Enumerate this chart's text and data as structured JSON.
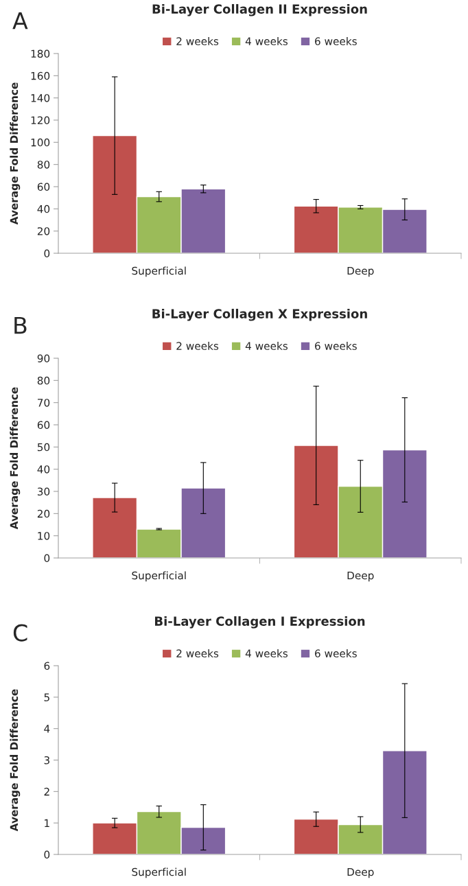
{
  "chart_data": [
    {
      "type": "bar",
      "title": "Bi-Layer Collagen II Expression",
      "ylabel": "Average Fold Difference",
      "categories": [
        "Superficial",
        "Deep"
      ],
      "annotations": [
        "A"
      ],
      "legend": "top",
      "ylim": [
        0,
        180
      ],
      "yticks": [
        0,
        20,
        40,
        60,
        80,
        100,
        120,
        140,
        160,
        180
      ],
      "series": [
        {
          "name": "2 weeks",
          "color": "#c0504d",
          "values": [
            106,
            42.5
          ],
          "errors": [
            53,
            6
          ]
        },
        {
          "name": "4 weeks",
          "color": "#9bbb59",
          "values": [
            51,
            41.5
          ],
          "errors": [
            4.5,
            1.5
          ]
        },
        {
          "name": "6 weeks",
          "color": "#8064a2",
          "values": [
            58,
            39.5
          ],
          "errors": [
            3.5,
            9.5
          ]
        }
      ]
    },
    {
      "type": "bar",
      "title": "Bi-Layer Collagen X Expression",
      "ylabel": "Average Fold Difference",
      "categories": [
        "Superficial",
        "Deep"
      ],
      "annotations": [
        "B"
      ],
      "legend": "top",
      "ylim": [
        0,
        90
      ],
      "yticks": [
        0,
        10,
        20,
        30,
        40,
        50,
        60,
        70,
        80,
        90
      ],
      "series": [
        {
          "name": "2 weeks",
          "color": "#c0504d",
          "values": [
            27.2,
            50.7
          ],
          "errors": [
            6.5,
            26.7
          ]
        },
        {
          "name": "4 weeks",
          "color": "#9bbb59",
          "values": [
            13,
            32.3
          ],
          "errors": [
            0.3,
            11.7
          ]
        },
        {
          "name": "6 weeks",
          "color": "#8064a2",
          "values": [
            31.5,
            48.7
          ],
          "errors": [
            11.5,
            23.5
          ]
        }
      ]
    },
    {
      "type": "bar",
      "title": "Bi-Layer Collagen I Expression",
      "ylabel": "Average Fold Difference",
      "categories": [
        "Superficial",
        "Deep"
      ],
      "annotations": [
        "C"
      ],
      "legend": "top",
      "ylim": [
        0,
        6
      ],
      "yticks": [
        0,
        1,
        2,
        3,
        4,
        5,
        6
      ],
      "series": [
        {
          "name": "2 weeks",
          "color": "#c0504d",
          "values": [
            1.0,
            1.12
          ],
          "errors": [
            0.15,
            0.23
          ]
        },
        {
          "name": "4 weeks",
          "color": "#9bbb59",
          "values": [
            1.36,
            0.95
          ],
          "errors": [
            0.18,
            0.25
          ]
        },
        {
          "name": "6 weeks",
          "color": "#8064a2",
          "values": [
            0.86,
            3.3
          ],
          "errors": [
            0.72,
            2.13
          ]
        }
      ]
    }
  ]
}
